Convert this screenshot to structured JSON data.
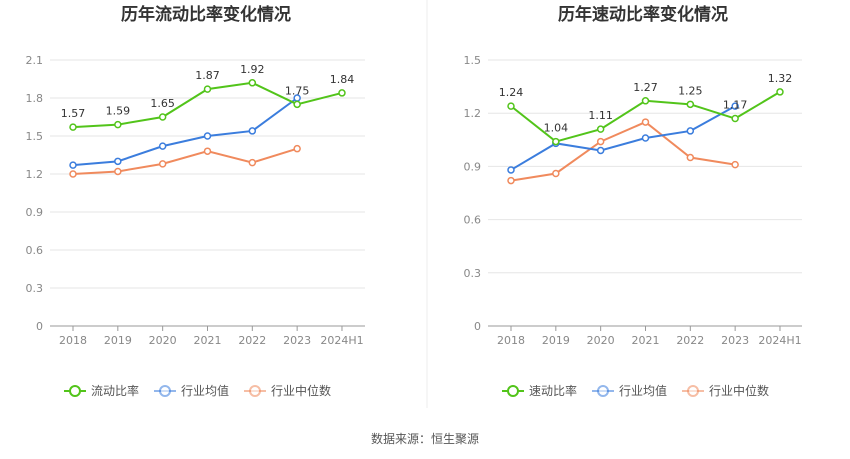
{
  "source_text": "数据来源：恒生聚源",
  "chart_data": [
    {
      "type": "line",
      "title": "历年流动比率变化情况",
      "categories": [
        "2018",
        "2019",
        "2020",
        "2021",
        "2022",
        "2023",
        "2024H1"
      ],
      "ylim": [
        0,
        2.1
      ],
      "yticks": [
        "0",
        "0.3",
        "0.6",
        "0.9",
        "1.2",
        "1.5",
        "1.8",
        "2.1"
      ],
      "series": [
        {
          "name": "流动比率",
          "color": "#52c41a",
          "values": [
            1.57,
            1.59,
            1.65,
            1.87,
            1.92,
            1.75,
            1.84
          ],
          "labels": [
            "1.57",
            "1.59",
            "1.65",
            "1.87",
            "1.92",
            "1.75",
            "1.84"
          ]
        },
        {
          "name": "行业均值",
          "color": "#3b7ddd",
          "values": [
            1.27,
            1.3,
            1.42,
            1.5,
            1.54,
            1.8,
            null
          ]
        },
        {
          "name": "行业中位数",
          "color": "#f08a5d",
          "values": [
            1.2,
            1.22,
            1.28,
            1.38,
            1.29,
            1.4,
            null
          ]
        }
      ]
    },
    {
      "type": "line",
      "title": "历年速动比率变化情况",
      "categories": [
        "2018",
        "2019",
        "2020",
        "2021",
        "2022",
        "2023",
        "2024H1"
      ],
      "ylim": [
        0,
        1.5
      ],
      "yticks": [
        "0",
        "0.3",
        "0.6",
        "0.9",
        "1.2",
        "1.5"
      ],
      "series": [
        {
          "name": "速动比率",
          "color": "#52c41a",
          "values": [
            1.24,
            1.04,
            1.11,
            1.27,
            1.25,
            1.17,
            1.32
          ],
          "labels": [
            "1.24",
            "1.04",
            "1.11",
            "1.27",
            "1.25",
            "1.17",
            "1.32"
          ]
        },
        {
          "name": "行业均值",
          "color": "#3b7ddd",
          "values": [
            0.88,
            1.03,
            0.99,
            1.06,
            1.1,
            1.24,
            null
          ]
        },
        {
          "name": "行业中位数",
          "color": "#f08a5d",
          "values": [
            0.82,
            0.86,
            1.04,
            1.15,
            0.95,
            0.91,
            null
          ]
        }
      ]
    }
  ]
}
